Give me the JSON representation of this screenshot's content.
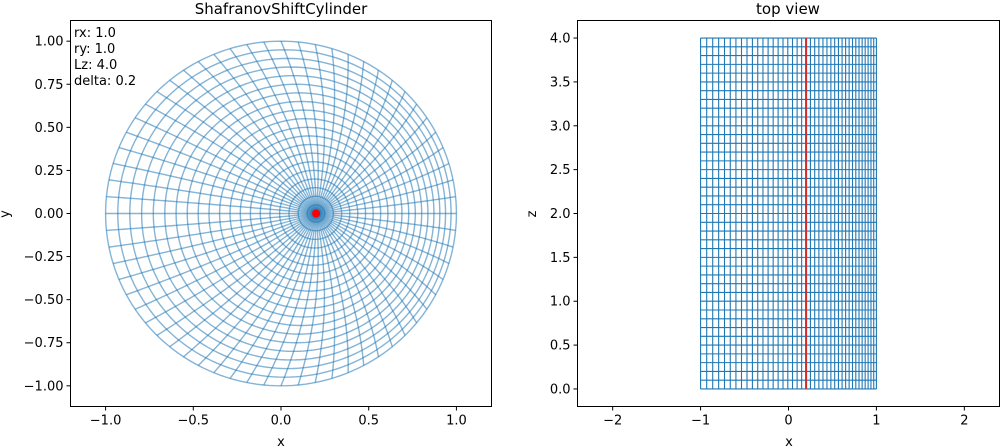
{
  "chart_data": [
    {
      "type": "line",
      "title": "ShafranovShiftCylinder",
      "xlabel": "x",
      "ylabel": "y",
      "xlim": [
        -1.2,
        1.2
      ],
      "ylim": [
        -1.12,
        1.12
      ],
      "xticks": [
        -1.0,
        -0.5,
        0.0,
        0.5,
        1.0
      ],
      "xtick_labels": [
        "−1.0",
        "−0.5",
        "0.0",
        "0.5",
        "1.0"
      ],
      "yticks": [
        -1.0,
        -0.75,
        -0.5,
        -0.25,
        0.0,
        0.25,
        0.5,
        0.75,
        1.0
      ],
      "ytick_labels": [
        "−1.00",
        "−0.75",
        "−0.50",
        "−0.25",
        "0.00",
        "0.25",
        "0.50",
        "0.75",
        "1.00"
      ],
      "annotation": [
        "rx: 1.0",
        "ry: 1.0",
        "Lz: 4.0",
        "delta: 0.2"
      ],
      "grid": false,
      "mesh": {
        "rx": 1.0,
        "ry": 1.0,
        "delta": 0.2,
        "n_radial": 21,
        "n_angular": 64,
        "line_color": "#1f77b4",
        "line_alpha": 0.55
      },
      "magnetic_axis": {
        "x": 0.2,
        "y": 0.0,
        "color": "#ff0000"
      }
    },
    {
      "type": "line",
      "title": "top view",
      "xlabel": "x",
      "ylabel": "z",
      "xlim": [
        -2.4,
        2.4
      ],
      "ylim": [
        -0.2,
        4.2
      ],
      "xticks": [
        -2,
        -1,
        0,
        1,
        2
      ],
      "xtick_labels": [
        "−2",
        "−1",
        "0",
        "1",
        "2"
      ],
      "yticks": [
        0.0,
        0.5,
        1.0,
        1.5,
        2.0,
        2.5,
        3.0,
        3.5,
        4.0
      ],
      "ytick_labels": [
        "0.0",
        "0.5",
        "1.0",
        "1.5",
        "2.0",
        "2.5",
        "3.0",
        "3.5",
        "4.0"
      ],
      "grid": false,
      "mesh": {
        "x_range": [
          -1.0,
          1.0
        ],
        "z_range": [
          0.0,
          4.0
        ],
        "delta": 0.2,
        "n_vertical": 41,
        "n_horizontal": 41,
        "line_color": "#1f77b4"
      },
      "axis_line": {
        "x": 0.2,
        "z": [
          0.0,
          4.0
        ],
        "color": "#d62728"
      }
    }
  ]
}
